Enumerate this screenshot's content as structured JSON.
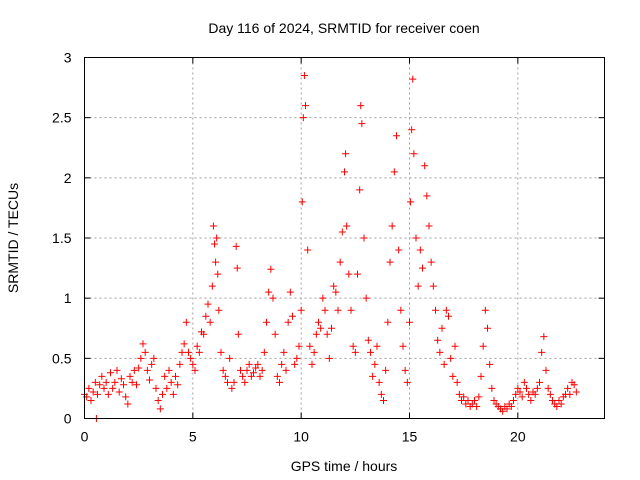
{
  "chart_data": {
    "type": "scatter",
    "title": "Day 116 of 2024, SRMTID for receiver coen",
    "xlabel": "GPS time / hours",
    "ylabel": "SRMTID / TECUs",
    "xlim": [
      0,
      24
    ],
    "ylim": [
      0,
      3
    ],
    "xticks": [
      0,
      5,
      10,
      15,
      20
    ],
    "yticks": [
      0,
      0.5,
      1,
      1.5,
      2,
      2.5,
      3
    ],
    "xtick_labels": [
      "0",
      "5",
      "10",
      "15",
      "20"
    ],
    "ytick_labels": [
      "0",
      "0.5",
      "1",
      "1.5",
      "2",
      "2.5",
      "3"
    ],
    "grid": true,
    "marker": "+",
    "color": "#ff0000",
    "series": [
      {
        "name": "SRMTID",
        "points": [
          [
            0.0,
            0.2
          ],
          [
            0.1,
            0.18
          ],
          [
            0.2,
            0.25
          ],
          [
            0.3,
            0.15
          ],
          [
            0.4,
            0.22
          ],
          [
            0.5,
            0.3
          ],
          [
            0.55,
            0.0
          ],
          [
            0.6,
            0.2
          ],
          [
            0.7,
            0.28
          ],
          [
            0.8,
            0.35
          ],
          [
            0.9,
            0.25
          ],
          [
            1.0,
            0.3
          ],
          [
            1.1,
            0.2
          ],
          [
            1.2,
            0.38
          ],
          [
            1.3,
            0.25
          ],
          [
            1.4,
            0.3
          ],
          [
            1.5,
            0.4
          ],
          [
            1.6,
            0.22
          ],
          [
            1.7,
            0.33
          ],
          [
            1.8,
            0.28
          ],
          [
            1.9,
            0.18
          ],
          [
            2.0,
            0.12
          ],
          [
            2.1,
            0.35
          ],
          [
            2.2,
            0.3
          ],
          [
            2.3,
            0.4
          ],
          [
            2.4,
            0.28
          ],
          [
            2.5,
            0.42
          ],
          [
            2.6,
            0.5
          ],
          [
            2.7,
            0.62
          ],
          [
            2.8,
            0.55
          ],
          [
            2.9,
            0.4
          ],
          [
            3.0,
            0.32
          ],
          [
            3.1,
            0.45
          ],
          [
            3.2,
            0.5
          ],
          [
            3.3,
            0.25
          ],
          [
            3.4,
            0.15
          ],
          [
            3.5,
            0.08
          ],
          [
            3.6,
            0.2
          ],
          [
            3.7,
            0.35
          ],
          [
            3.8,
            0.25
          ],
          [
            3.9,
            0.4
          ],
          [
            4.0,
            0.3
          ],
          [
            4.1,
            0.2
          ],
          [
            4.2,
            0.35
          ],
          [
            4.3,
            0.28
          ],
          [
            4.4,
            0.45
          ],
          [
            4.5,
            0.55
          ],
          [
            4.6,
            0.62
          ],
          [
            4.7,
            0.8
          ],
          [
            4.8,
            0.55
          ],
          [
            4.9,
            0.5
          ],
          [
            5.0,
            0.45
          ],
          [
            5.1,
            0.4
          ],
          [
            5.2,
            0.6
          ],
          [
            5.3,
            0.55
          ],
          [
            5.4,
            0.72
          ],
          [
            5.5,
            0.7
          ],
          [
            5.6,
            0.85
          ],
          [
            5.7,
            0.95
          ],
          [
            5.8,
            0.8
          ],
          [
            5.9,
            1.1
          ],
          [
            5.95,
            1.6
          ],
          [
            6.0,
            1.45
          ],
          [
            6.05,
            1.3
          ],
          [
            6.1,
            1.5
          ],
          [
            6.15,
            1.2
          ],
          [
            6.2,
            0.9
          ],
          [
            6.3,
            0.55
          ],
          [
            6.4,
            0.4
          ],
          [
            6.5,
            0.35
          ],
          [
            6.6,
            0.3
          ],
          [
            6.7,
            0.5
          ],
          [
            6.8,
            0.25
          ],
          [
            6.9,
            0.3
          ],
          [
            7.0,
            1.43
          ],
          [
            7.05,
            1.25
          ],
          [
            7.1,
            0.7
          ],
          [
            7.2,
            0.4
          ],
          [
            7.3,
            0.35
          ],
          [
            7.4,
            0.3
          ],
          [
            7.5,
            0.4
          ],
          [
            7.6,
            0.45
          ],
          [
            7.7,
            0.35
          ],
          [
            7.8,
            0.38
          ],
          [
            7.9,
            0.42
          ],
          [
            8.0,
            0.45
          ],
          [
            8.1,
            0.35
          ],
          [
            8.2,
            0.4
          ],
          [
            8.3,
            0.55
          ],
          [
            8.4,
            0.8
          ],
          [
            8.5,
            1.05
          ],
          [
            8.6,
            1.24
          ],
          [
            8.7,
            1.0
          ],
          [
            8.8,
            0.7
          ],
          [
            8.9,
            0.35
          ],
          [
            9.0,
            0.3
          ],
          [
            9.1,
            0.45
          ],
          [
            9.2,
            0.55
          ],
          [
            9.3,
            0.4
          ],
          [
            9.4,
            0.8
          ],
          [
            9.5,
            1.05
          ],
          [
            9.6,
            0.85
          ],
          [
            9.7,
            0.45
          ],
          [
            9.8,
            0.5
          ],
          [
            9.9,
            0.6
          ],
          [
            10.0,
            0.9
          ],
          [
            10.05,
            1.8
          ],
          [
            10.1,
            2.5
          ],
          [
            10.15,
            2.85
          ],
          [
            10.2,
            2.6
          ],
          [
            10.3,
            1.4
          ],
          [
            10.4,
            0.6
          ],
          [
            10.5,
            0.45
          ],
          [
            10.6,
            0.55
          ],
          [
            10.7,
            0.7
          ],
          [
            10.8,
            0.8
          ],
          [
            10.9,
            0.75
          ],
          [
            11.0,
            1.0
          ],
          [
            11.1,
            0.9
          ],
          [
            11.2,
            0.7
          ],
          [
            11.3,
            0.5
          ],
          [
            11.4,
            0.75
          ],
          [
            11.5,
            1.1
          ],
          [
            11.6,
            1.05
          ],
          [
            11.7,
            0.9
          ],
          [
            11.8,
            1.3
          ],
          [
            11.9,
            1.55
          ],
          [
            12.0,
            2.05
          ],
          [
            12.05,
            2.2
          ],
          [
            12.1,
            1.6
          ],
          [
            12.2,
            1.2
          ],
          [
            12.3,
            0.9
          ],
          [
            12.4,
            0.6
          ],
          [
            12.5,
            0.55
          ],
          [
            12.6,
            1.2
          ],
          [
            12.7,
            1.9
          ],
          [
            12.75,
            2.6
          ],
          [
            12.8,
            2.45
          ],
          [
            12.9,
            1.5
          ],
          [
            13.0,
            1.0
          ],
          [
            13.1,
            0.65
          ],
          [
            13.2,
            0.55
          ],
          [
            13.3,
            0.35
          ],
          [
            13.4,
            0.45
          ],
          [
            13.5,
            0.6
          ],
          [
            13.6,
            0.3
          ],
          [
            13.7,
            0.2
          ],
          [
            13.8,
            0.15
          ],
          [
            13.9,
            0.4
          ],
          [
            14.0,
            0.8
          ],
          [
            14.1,
            1.3
          ],
          [
            14.2,
            1.6
          ],
          [
            14.3,
            2.05
          ],
          [
            14.4,
            2.35
          ],
          [
            14.5,
            1.4
          ],
          [
            14.6,
            0.9
          ],
          [
            14.7,
            0.6
          ],
          [
            14.8,
            0.4
          ],
          [
            14.9,
            0.3
          ],
          [
            15.0,
            0.8
          ],
          [
            15.05,
            1.8
          ],
          [
            15.1,
            2.4
          ],
          [
            15.15,
            2.82
          ],
          [
            15.2,
            2.2
          ],
          [
            15.3,
            1.5
          ],
          [
            15.4,
            1.1
          ],
          [
            15.5,
            1.4
          ],
          [
            15.6,
            1.25
          ],
          [
            15.7,
            2.1
          ],
          [
            15.8,
            1.85
          ],
          [
            15.9,
            1.6
          ],
          [
            16.0,
            1.3
          ],
          [
            16.1,
            1.1
          ],
          [
            16.2,
            0.9
          ],
          [
            16.3,
            0.65
          ],
          [
            16.4,
            0.55
          ],
          [
            16.5,
            0.75
          ],
          [
            16.6,
            0.45
          ],
          [
            16.7,
            0.9
          ],
          [
            16.8,
            0.85
          ],
          [
            16.9,
            0.5
          ],
          [
            17.0,
            0.35
          ],
          [
            17.1,
            0.6
          ],
          [
            17.2,
            0.3
          ],
          [
            17.3,
            0.2
          ],
          [
            17.4,
            0.15
          ],
          [
            17.5,
            0.18
          ],
          [
            17.6,
            0.12
          ],
          [
            17.7,
            0.15
          ],
          [
            17.8,
            0.1
          ],
          [
            17.9,
            0.12
          ],
          [
            18.0,
            0.15
          ],
          [
            18.1,
            0.1
          ],
          [
            18.2,
            0.18
          ],
          [
            18.3,
            0.35
          ],
          [
            18.4,
            0.6
          ],
          [
            18.5,
            0.9
          ],
          [
            18.6,
            0.75
          ],
          [
            18.7,
            0.45
          ],
          [
            18.8,
            0.25
          ],
          [
            18.9,
            0.15
          ],
          [
            19.0,
            0.12
          ],
          [
            19.1,
            0.1
          ],
          [
            19.2,
            0.08
          ],
          [
            19.3,
            0.06
          ],
          [
            19.4,
            0.1
          ],
          [
            19.5,
            0.08
          ],
          [
            19.6,
            0.12
          ],
          [
            19.7,
            0.1
          ],
          [
            19.8,
            0.15
          ],
          [
            19.9,
            0.2
          ],
          [
            20.0,
            0.25
          ],
          [
            20.1,
            0.22
          ],
          [
            20.2,
            0.18
          ],
          [
            20.3,
            0.3
          ],
          [
            20.4,
            0.25
          ],
          [
            20.5,
            0.2
          ],
          [
            20.6,
            0.15
          ],
          [
            20.7,
            0.22
          ],
          [
            20.8,
            0.2
          ],
          [
            20.9,
            0.25
          ],
          [
            21.0,
            0.3
          ],
          [
            21.1,
            0.55
          ],
          [
            21.2,
            0.68
          ],
          [
            21.3,
            0.4
          ],
          [
            21.4,
            0.25
          ],
          [
            21.5,
            0.2
          ],
          [
            21.6,
            0.15
          ],
          [
            21.7,
            0.12
          ],
          [
            21.8,
            0.1
          ],
          [
            21.9,
            0.15
          ],
          [
            22.0,
            0.12
          ],
          [
            22.1,
            0.18
          ],
          [
            22.2,
            0.2
          ],
          [
            22.3,
            0.25
          ],
          [
            22.4,
            0.2
          ],
          [
            22.5,
            0.3
          ],
          [
            22.6,
            0.28
          ],
          [
            22.7,
            0.22
          ]
        ]
      }
    ]
  }
}
